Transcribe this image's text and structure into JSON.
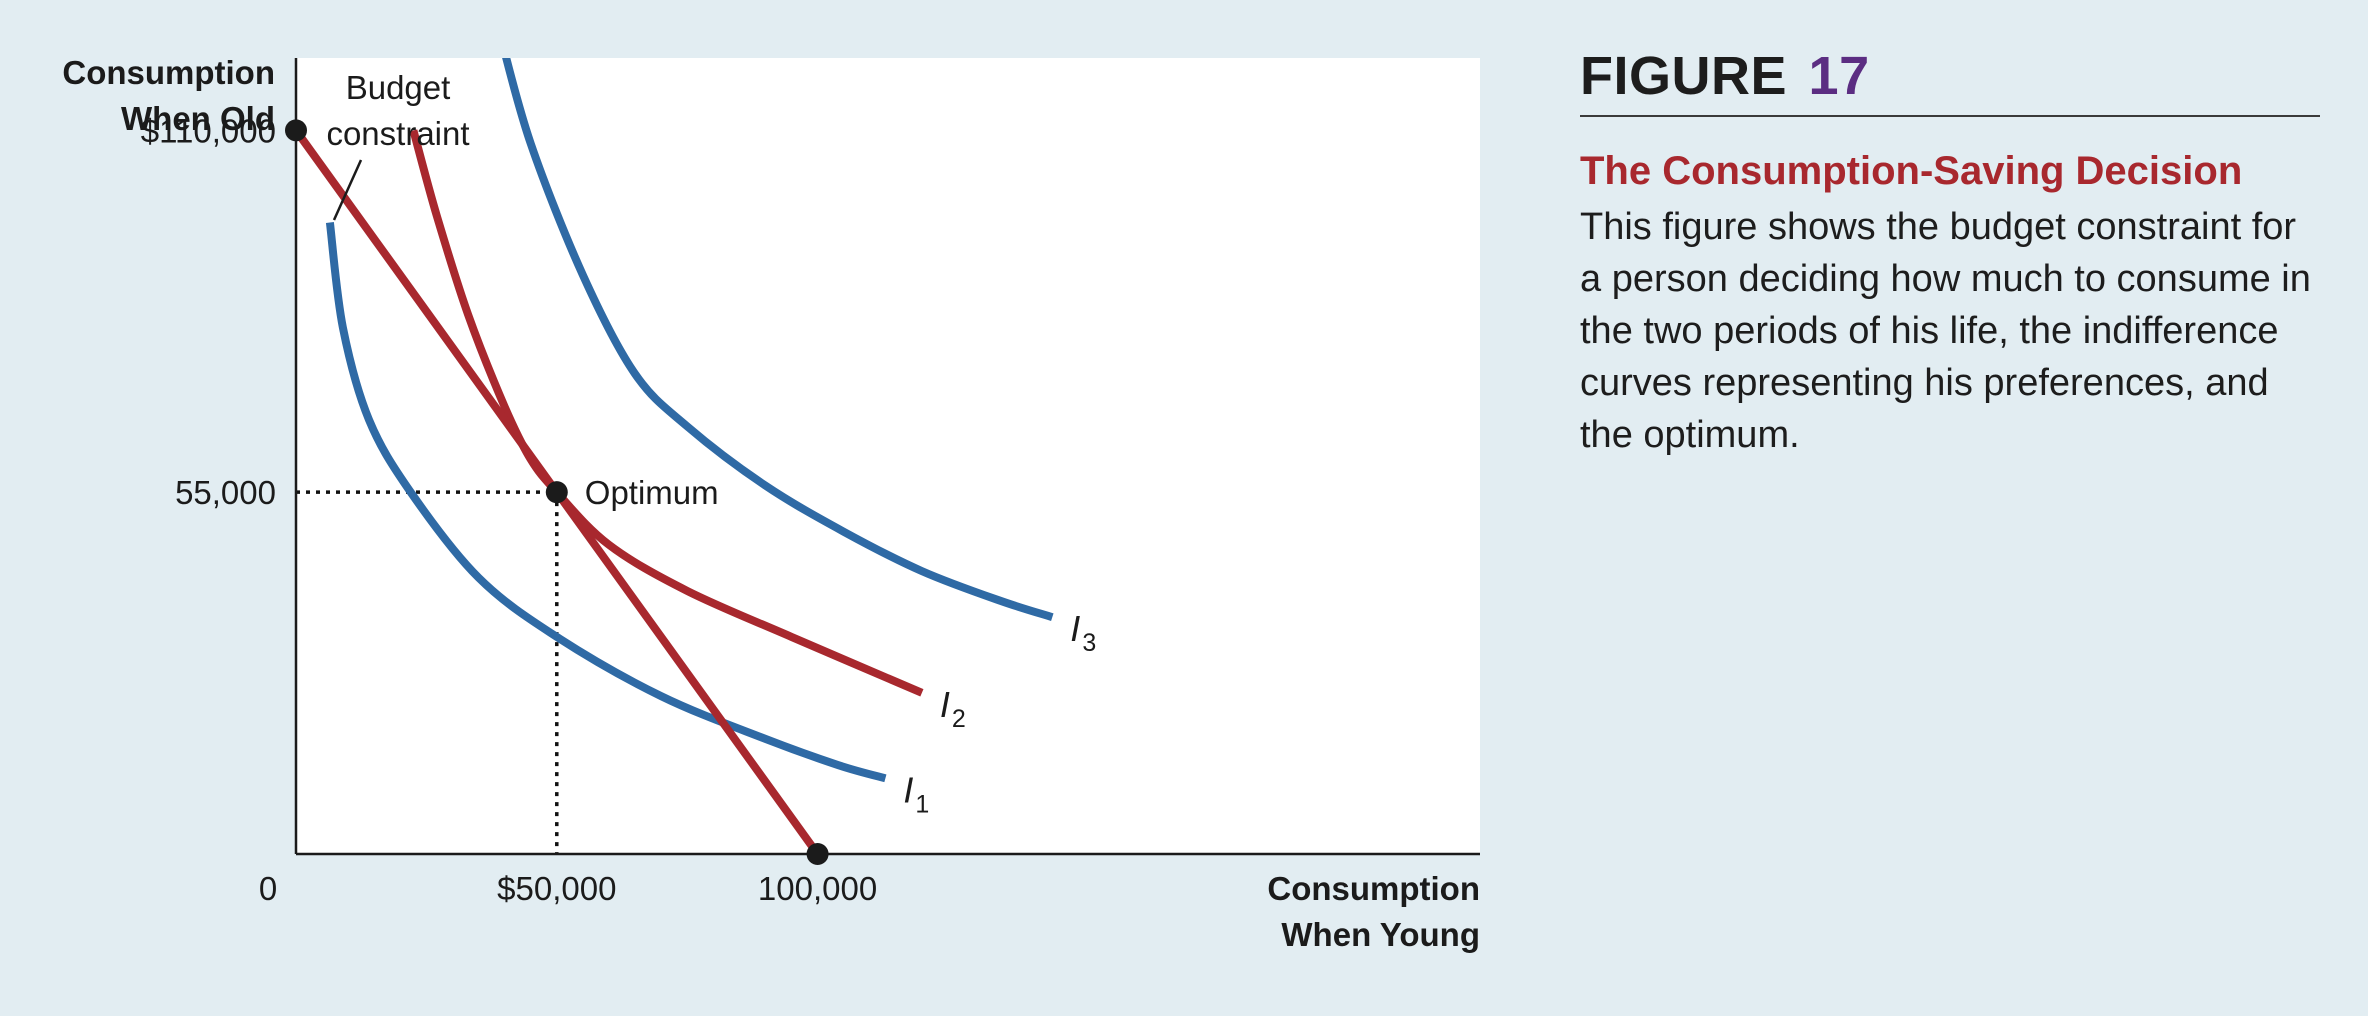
{
  "figure": {
    "label": "FIGURE",
    "number": "17",
    "title": "The Consumption-Saving Decision",
    "caption": "This figure shows the budget constraint for a person deciding how much to consume in the two periods of his life, the indifference curves representing his preferences, and the optimum."
  },
  "chart_data": {
    "type": "line",
    "title": "",
    "xlabel": [
      "Consumption",
      "When Young"
    ],
    "ylabel": [
      "Consumption",
      "When Old"
    ],
    "xlim": [
      0,
      227000
    ],
    "ylim": [
      0,
      121000
    ],
    "origin_label": "0",
    "x_ticks": [
      {
        "value": 50000,
        "label": "$50,000"
      },
      {
        "value": 100000,
        "label": "100,000"
      }
    ],
    "y_ticks": [
      {
        "value": 110000,
        "label": "$110,000"
      },
      {
        "value": 55000,
        "label": "55,000"
      }
    ],
    "budget_constraint": {
      "name": "Budget constraint",
      "label": [
        "Budget",
        "constraint"
      ],
      "points": [
        [
          0,
          110000
        ],
        [
          100000,
          0
        ]
      ],
      "color": "#a8282e"
    },
    "optimum": {
      "label": "Optimum",
      "x": 50000,
      "y": 55000
    },
    "series": [
      {
        "name": "I1",
        "letter": "I",
        "subscript": "1",
        "color": "#2f6aa5",
        "points": [
          [
            6500,
            96000
          ],
          [
            9000,
            80000
          ],
          [
            14000,
            66000
          ],
          [
            22000,
            55000
          ],
          [
            35000,
            42000
          ],
          [
            50000,
            33000
          ],
          [
            70000,
            24000
          ],
          [
            90000,
            17500
          ],
          [
            104000,
            13500
          ],
          [
            113000,
            11500
          ]
        ]
      },
      {
        "name": "I2",
        "letter": "I",
        "subscript": "2",
        "color": "#a8282e",
        "points": [
          [
            22500,
            110000
          ],
          [
            27000,
            97000
          ],
          [
            33000,
            82000
          ],
          [
            40000,
            68000
          ],
          [
            45000,
            60000
          ],
          [
            50000,
            55000
          ],
          [
            60000,
            47000
          ],
          [
            75000,
            40000
          ],
          [
            95000,
            33000
          ],
          [
            120000,
            24500
          ]
        ]
      },
      {
        "name": "I3",
        "letter": "I",
        "subscript": "3",
        "color": "#2f6aa5",
        "points": [
          [
            39000,
            125000
          ],
          [
            45000,
            108000
          ],
          [
            55000,
            88000
          ],
          [
            65000,
            73000
          ],
          [
            75000,
            65000
          ],
          [
            90000,
            56000
          ],
          [
            105000,
            49000
          ],
          [
            120000,
            43000
          ],
          [
            135000,
            38500
          ],
          [
            145000,
            36000
          ]
        ]
      }
    ],
    "grid": false,
    "legend": "none"
  }
}
